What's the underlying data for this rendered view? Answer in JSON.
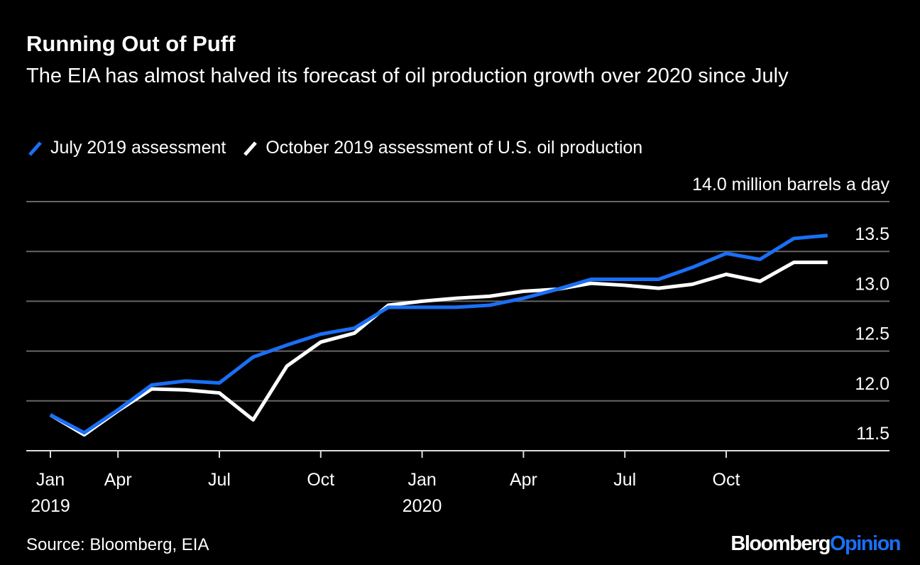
{
  "chart_data": {
    "type": "line",
    "title": "Running Out of Puff",
    "subtitle": "The EIA has almost halved its forecast of oil production growth over 2020 since July",
    "categories": [
      "Jan\n2019",
      null,
      "Apr",
      null,
      null,
      "Jul",
      null,
      null,
      "Oct",
      null,
      null,
      "Jan\n2020",
      null,
      null,
      "Apr",
      null,
      null,
      "Jul",
      null,
      null,
      "Oct",
      null,
      null,
      null
    ],
    "series": [
      {
        "name": "July 2019 assessment",
        "color": "#1a6ff5",
        "values": [
          11.86,
          11.68,
          11.91,
          12.16,
          12.2,
          12.18,
          12.44,
          12.56,
          12.67,
          12.73,
          12.94,
          12.94,
          12.94,
          12.96,
          13.03,
          13.12,
          13.22,
          13.22,
          13.22,
          13.34,
          13.48,
          13.42,
          13.63,
          13.66
        ]
      },
      {
        "name": "October 2019 assessment of U.S. oil production",
        "color": "#ffffff",
        "values": [
          11.86,
          11.66,
          11.9,
          12.12,
          12.11,
          12.08,
          11.81,
          12.35,
          12.59,
          12.68,
          12.96,
          13.0,
          13.03,
          13.05,
          13.1,
          13.12,
          13.18,
          13.16,
          13.13,
          13.17,
          13.27,
          13.2,
          13.39,
          13.39
        ]
      }
    ],
    "ylim": [
      11.5,
      14.0
    ],
    "yticks": [
      11.5,
      {
        "value": 12,
        "label": "12.0"
      },
      12.5,
      {
        "value": 13,
        "label": "13.0"
      },
      13.5,
      {
        "value": 14,
        "label": "14.0 million barrels a day"
      }
    ],
    "grid": true,
    "source": "Source: Bloomberg, EIA",
    "logo": [
      "Bloomberg",
      "Opinion"
    ]
  }
}
